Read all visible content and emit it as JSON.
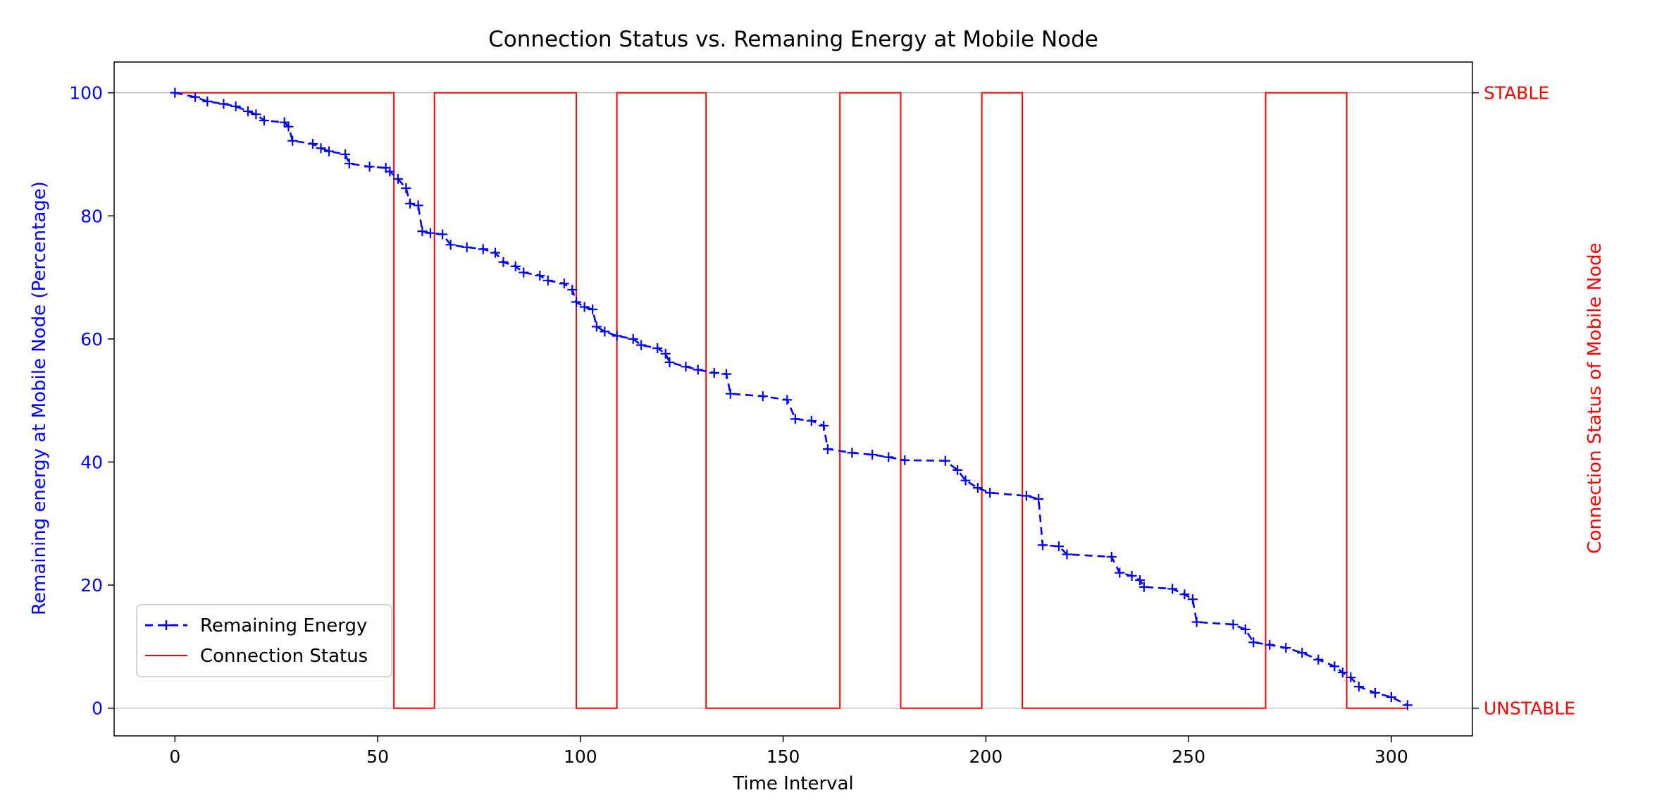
{
  "chart_data": {
    "type": "line",
    "title": "Connection Status vs. Remaning Energy at Mobile Node",
    "xlabel": "Time Interval",
    "ylabel": "Remaining energy at Mobile Node (Percentage)",
    "y2label": "Connection Status of Mobile Node",
    "xlim": [
      -15,
      320
    ],
    "ylim": [
      -4.5,
      105
    ],
    "xticks": [
      0,
      50,
      100,
      150,
      200,
      250,
      300
    ],
    "yticks": [
      0,
      20,
      40,
      60,
      80,
      100
    ],
    "y2ticks": [
      {
        "label": "STABLE",
        "level": 100
      },
      {
        "label": "UNSTABLE",
        "level": 0
      }
    ],
    "legend_position": "lower-left",
    "colors": {
      "energy": "#0000ff",
      "status": "#ff0000",
      "grid": "#b0b0b0"
    },
    "series": [
      {
        "name": "Remaining Energy",
        "style": "dashed-plus-marker",
        "points": [
          [
            0,
            100
          ],
          [
            5,
            99.3
          ],
          [
            8,
            98.6
          ],
          [
            12,
            98.2
          ],
          [
            15,
            97.8
          ],
          [
            18,
            97.0
          ],
          [
            20,
            96.5
          ],
          [
            22,
            95.5
          ],
          [
            27,
            95.2
          ],
          [
            28,
            94.5
          ],
          [
            29,
            92.2
          ],
          [
            34,
            91.7
          ],
          [
            36,
            91.0
          ],
          [
            38,
            90.5
          ],
          [
            42,
            90.0
          ],
          [
            43,
            88.5
          ],
          [
            48,
            88.0
          ],
          [
            52,
            87.8
          ],
          [
            53,
            87.2
          ],
          [
            55,
            86.0
          ],
          [
            57,
            84.5
          ],
          [
            58,
            82.0
          ],
          [
            60,
            81.7
          ],
          [
            61,
            77.5
          ],
          [
            63,
            77.2
          ],
          [
            66,
            77.0
          ],
          [
            68,
            75.3
          ],
          [
            72,
            74.9
          ],
          [
            76,
            74.6
          ],
          [
            79,
            74.0
          ],
          [
            81,
            72.5
          ],
          [
            84,
            71.8
          ],
          [
            86,
            70.8
          ],
          [
            90,
            70.3
          ],
          [
            92,
            69.5
          ],
          [
            96,
            69.0
          ],
          [
            98,
            68.0
          ],
          [
            99,
            66.0
          ],
          [
            101,
            65.2
          ],
          [
            103,
            64.8
          ],
          [
            104,
            62.0
          ],
          [
            106,
            61.2
          ],
          [
            109,
            60.5
          ],
          [
            113,
            60.0
          ],
          [
            115,
            59.0
          ],
          [
            119,
            58.5
          ],
          [
            121,
            57.6
          ],
          [
            122,
            56.2
          ],
          [
            126,
            55.5
          ],
          [
            129,
            55.0
          ],
          [
            133,
            54.5
          ],
          [
            136,
            54.3
          ],
          [
            137,
            51.1
          ],
          [
            145,
            50.7
          ],
          [
            151,
            50.1
          ],
          [
            153,
            47.0
          ],
          [
            157,
            46.7
          ],
          [
            160,
            45.9
          ],
          [
            161,
            42.1
          ],
          [
            167,
            41.5
          ],
          [
            172,
            41.2
          ],
          [
            176,
            40.8
          ],
          [
            180,
            40.3
          ],
          [
            190,
            40.2
          ],
          [
            193,
            38.7
          ],
          [
            195,
            37.0
          ],
          [
            198,
            35.8
          ],
          [
            201,
            35.0
          ],
          [
            210,
            34.5
          ],
          [
            213,
            34.0
          ],
          [
            214,
            26.5
          ],
          [
            218,
            26.3
          ],
          [
            220,
            25.0
          ],
          [
            231,
            24.6
          ],
          [
            233,
            22.0
          ],
          [
            236,
            21.5
          ],
          [
            238,
            20.8
          ],
          [
            239,
            19.7
          ],
          [
            246,
            19.4
          ],
          [
            249,
            18.5
          ],
          [
            251,
            17.7
          ],
          [
            252,
            14.0
          ],
          [
            261,
            13.6
          ],
          [
            264,
            12.8
          ],
          [
            266,
            10.7
          ],
          [
            270,
            10.3
          ],
          [
            274,
            9.8
          ],
          [
            278,
            9.0
          ],
          [
            282,
            7.9
          ],
          [
            286,
            6.8
          ],
          [
            288,
            5.8
          ],
          [
            290,
            5.0
          ],
          [
            292,
            3.5
          ],
          [
            296,
            2.5
          ],
          [
            300,
            1.8
          ],
          [
            304,
            0.5
          ]
        ]
      },
      {
        "name": "Connection Status",
        "style": "solid-step",
        "points": [
          [
            0,
            100
          ],
          [
            54,
            100
          ],
          [
            54,
            0
          ],
          [
            64,
            0
          ],
          [
            64,
            100
          ],
          [
            99,
            100
          ],
          [
            99,
            0
          ],
          [
            109,
            0
          ],
          [
            109,
            100
          ],
          [
            131,
            100
          ],
          [
            131,
            0
          ],
          [
            164,
            0
          ],
          [
            164,
            100
          ],
          [
            179,
            100
          ],
          [
            179,
            0
          ],
          [
            199,
            0
          ],
          [
            199,
            100
          ],
          [
            209,
            100
          ],
          [
            209,
            0
          ],
          [
            269,
            0
          ],
          [
            269,
            100
          ],
          [
            289,
            100
          ],
          [
            289,
            0
          ],
          [
            304,
            0
          ]
        ]
      }
    ]
  }
}
